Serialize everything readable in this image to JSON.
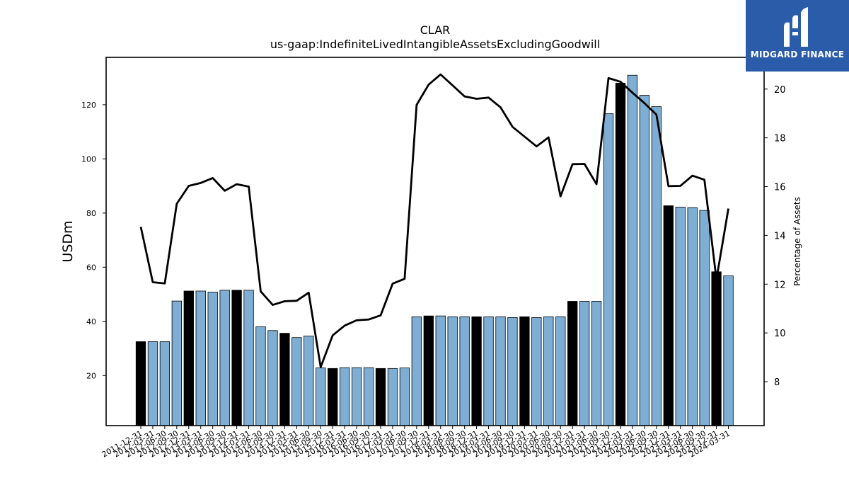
{
  "logo": {
    "text": "MIDGARD FINANCE"
  },
  "chart_data": {
    "type": "bar",
    "title": "CLAR",
    "subtitle": "us-gaap:IndefiniteLivedIntangibleAssetsExcludingGoodwill",
    "ylabel": "USDm",
    "y2label": "Percentage of Assets",
    "ylim": [
      1.5,
      137.5
    ],
    "y2lim": [
      6.2,
      21.3
    ],
    "yticks": [
      20,
      40,
      60,
      80,
      100,
      120
    ],
    "y2ticks": [
      8,
      10,
      12,
      14,
      16,
      18,
      20
    ],
    "grid": false,
    "colors": {
      "bar": "#7eaed3",
      "bar_highlight": "#000000",
      "line": "#000000"
    },
    "categories": [
      "2011-12-31",
      "2012-03-31",
      "2012-06-30",
      "2012-09-30",
      "2012-12-31",
      "2013-03-31",
      "2013-06-30",
      "2013-09-30",
      "2013-12-31",
      "2014-03-31",
      "2014-06-30",
      "2014-09-30",
      "2014-12-31",
      "2015-03-31",
      "2015-06-30",
      "2015-09-30",
      "2015-12-31",
      "2016-03-31",
      "2016-06-30",
      "2016-09-30",
      "2016-12-31",
      "2017-03-31",
      "2017-06-30",
      "2017-09-30",
      "2017-12-31",
      "2018-03-31",
      "2018-06-30",
      "2018-09-30",
      "2018-12-31",
      "2019-03-31",
      "2019-06-30",
      "2019-09-30",
      "2019-12-31",
      "2020-03-31",
      "2020-06-30",
      "2020-09-30",
      "2020-12-31",
      "2021-03-31",
      "2021-06-30",
      "2021-09-30",
      "2021-12-31",
      "2022-03-31",
      "2022-06-30",
      "2022-09-30",
      "2022-12-31",
      "2023-03-31",
      "2023-06-30",
      "2023-09-30",
      "2023-12-31",
      "2024-03-31"
    ],
    "tick_labels": [
      "2011-12-31",
      "2012-03-31",
      "2012-06-30",
      "2012-09-30",
      "2012-12-31",
      "2013-03-31",
      "2013-06-30",
      "2013-09-30",
      "2013-12-31",
      "2014-03-31",
      "2014-06-30",
      "2014-09-30",
      "2014-12-31",
      "2015-03-31",
      "2015-06-30",
      "2015-09-30",
      "2015-12-31",
      "2016-03-31",
      "2016-06-30",
      "2016-09-30",
      "2016-12-31",
      "2017-03-31",
      "2017-06-30",
      "2017-09-30",
      "2017-12-31",
      "2018-03-31",
      "2018-06-30",
      "2018-09-30",
      "2018-12-31",
      "2019-03-31",
      "2019-06-30",
      "2019-09-30",
      "2019-12-31",
      "2020-03-31",
      "2020-06-30",
      "2020-09-30",
      "2020-12-31",
      "2021-03-31",
      "2021-06-30",
      "2021-09-30",
      "2021-12-31",
      "2022-03-31",
      "2022-06-30",
      "2022-09-30",
      "2022-12-31",
      "2023-03-31",
      "2023-06-30",
      "2023-09-30",
      "2023-12-31",
      "2024-03-31"
    ],
    "series": [
      {
        "type": "bar",
        "axis": "left",
        "values": [
          32.5,
          32.5,
          32.5,
          47.5,
          51.2,
          51.2,
          50.8,
          51.5,
          51.5,
          51.5,
          38.0,
          36.6,
          35.6,
          34.0,
          34.6,
          22.8,
          22.6,
          22.9,
          22.9,
          22.9,
          22.6,
          22.6,
          22.8,
          41.7,
          42.0,
          42.0,
          41.7,
          41.7,
          41.7,
          41.7,
          41.7,
          41.4,
          41.7,
          41.4,
          41.7,
          41.7,
          47.4,
          47.4,
          47.4,
          116.7,
          128.0,
          130.9,
          123.5,
          119.3,
          82.7,
          82.2,
          82.0,
          81.0,
          58.3,
          56.8
        ],
        "highlight": [
          true,
          false,
          false,
          false,
          true,
          false,
          false,
          false,
          true,
          false,
          false,
          false,
          true,
          false,
          false,
          false,
          true,
          false,
          false,
          false,
          true,
          false,
          false,
          false,
          true,
          false,
          false,
          false,
          true,
          false,
          false,
          false,
          true,
          false,
          false,
          false,
          true,
          false,
          false,
          false,
          true,
          false,
          false,
          false,
          true,
          false,
          false,
          false,
          true,
          false
        ]
      },
      {
        "type": "line",
        "axis": "right",
        "name": "Percentage of Assets",
        "values": [
          14.35,
          12.08,
          12.03,
          15.3,
          16.03,
          16.15,
          16.35,
          15.83,
          16.1,
          16.0,
          11.7,
          11.15,
          11.3,
          11.32,
          11.65,
          8.6,
          9.9,
          10.3,
          10.52,
          10.55,
          10.72,
          12.02,
          12.22,
          19.35,
          20.18,
          20.6,
          20.15,
          19.7,
          19.6,
          19.65,
          19.25,
          18.45,
          18.05,
          17.65,
          18.02,
          15.6,
          16.92,
          16.93,
          16.1,
          20.45,
          20.3,
          19.85,
          19.42,
          18.95,
          16.02,
          16.03,
          16.45,
          16.28,
          12.2,
          15.1
        ]
      }
    ]
  }
}
